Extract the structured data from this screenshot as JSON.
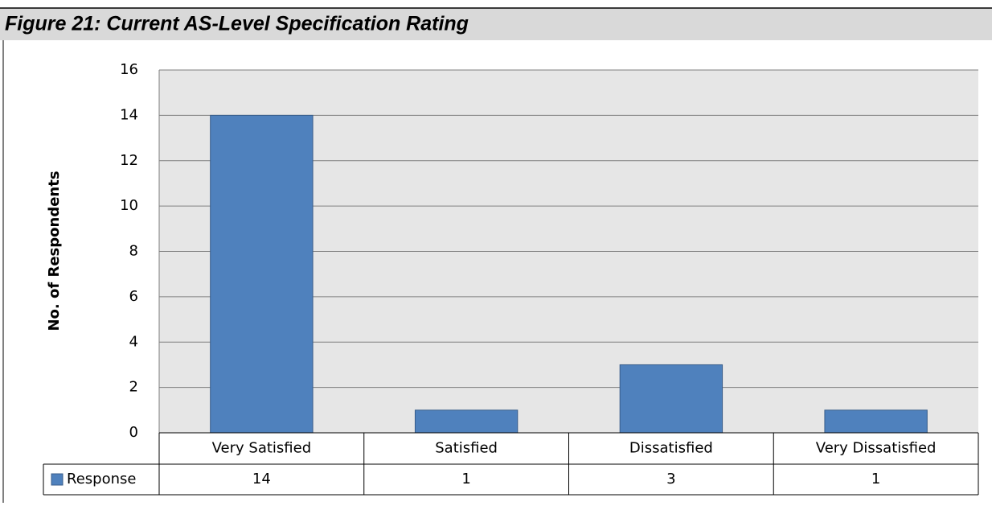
{
  "chart_data": {
    "type": "bar",
    "title": "Figure 21: Current AS-Level Specification Rating",
    "y_label": "No. of Respondents",
    "categories": [
      "Very Satisfied",
      "Satisfied",
      "Dissatisfied",
      "Very Dissatisfied"
    ],
    "series": [
      {
        "name": "Response",
        "color": "#4f81bd",
        "values": [
          14,
          1,
          3,
          1
        ]
      }
    ],
    "ylim": [
      0,
      16
    ],
    "yticks": [
      0,
      2,
      4,
      6,
      8,
      10,
      12,
      14,
      16
    ],
    "grid": true,
    "data_table": true
  }
}
